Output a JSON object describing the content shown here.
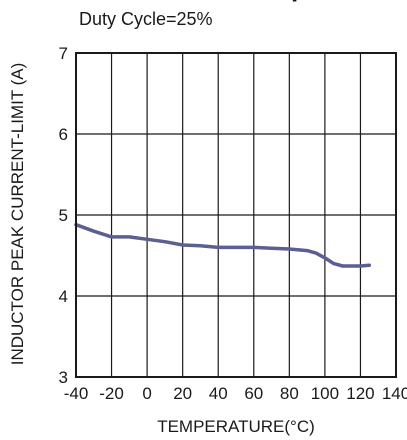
{
  "chart_data": {
    "type": "line",
    "title": "",
    "subtitle": "Duty Cycle=25%",
    "xlabel": "TEMPERATURE(°C)",
    "ylabel": "INDUCTOR PEAK CURRENT-LIMIT (A)",
    "xlim": [
      -40,
      140
    ],
    "ylim": [
      3,
      7
    ],
    "xticks": [
      -40,
      -20,
      0,
      20,
      40,
      60,
      80,
      100,
      120,
      140
    ],
    "yticks": [
      3,
      4,
      5,
      6,
      7
    ],
    "grid": true,
    "legend": "none",
    "series": [
      {
        "color": "#5b5f91",
        "x": [
          -40,
          -30,
          -20,
          -10,
          0,
          10,
          20,
          30,
          40,
          50,
          60,
          70,
          80,
          90,
          95,
          100,
          105,
          110,
          115,
          120,
          125
        ],
        "y": [
          4.88,
          4.8,
          4.73,
          4.73,
          4.7,
          4.67,
          4.63,
          4.62,
          4.6,
          4.6,
          4.6,
          4.59,
          4.58,
          4.56,
          4.53,
          4.47,
          4.4,
          4.37,
          4.37,
          4.37,
          4.38
        ]
      }
    ]
  }
}
